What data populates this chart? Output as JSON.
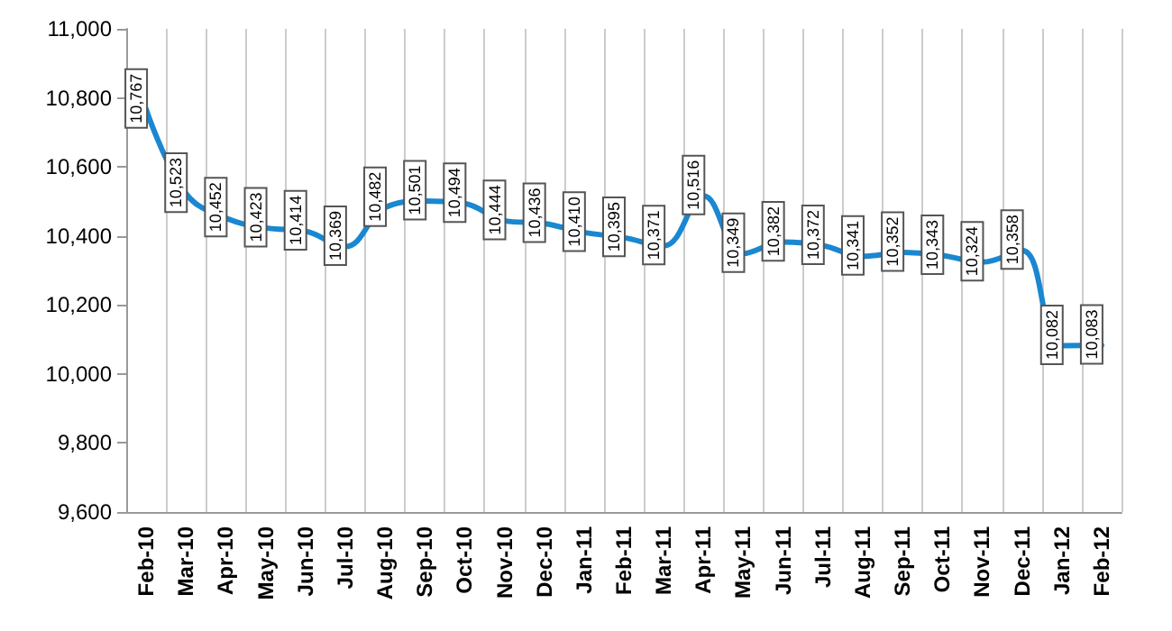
{
  "chart_data": {
    "type": "line",
    "categories": [
      "Feb-10",
      "Mar-10",
      "Apr-10",
      "May-10",
      "Jun-10",
      "Jul-10",
      "Aug-10",
      "Sep-10",
      "Oct-10",
      "Nov-10",
      "Dec-10",
      "Jan-11",
      "Feb-11",
      "Mar-11",
      "Apr-11",
      "May-11",
      "Jun-11",
      "Jul-11",
      "Aug-11",
      "Sep-11",
      "Oct-11",
      "Nov-11",
      "Dec-11",
      "Jan-12",
      "Feb-12"
    ],
    "series": [
      {
        "color": "#1a87d1",
        "values": [
          10767,
          10523,
          10452,
          10423,
          10414,
          10369,
          10482,
          10501,
          10494,
          10444,
          10436,
          10410,
          10395,
          10371,
          10516,
          10349,
          10382,
          10372,
          10341,
          10352,
          10343,
          10324,
          10358,
          10082,
          10083
        ],
        "value_labels": [
          "10,767",
          "10,523",
          "10,452",
          "10,423",
          "10,414",
          "10,369",
          "10,482",
          "10,501",
          "10,494",
          "10,444",
          "10,436",
          "10,410",
          "10,395",
          "10,371",
          "10,516",
          "10,349",
          "10,382",
          "10,372",
          "10,341",
          "10,352",
          "10,343",
          "10,324",
          "10,358",
          "10,082",
          "10,083"
        ]
      }
    ],
    "ylim": [
      9600,
      11000
    ],
    "yticks": [
      {
        "value": 9600,
        "label": "9,600"
      },
      {
        "value": 9800,
        "label": "9,800"
      },
      {
        "value": 10000,
        "label": "10,000"
      },
      {
        "value": 10200,
        "label": "10,200"
      },
      {
        "value": 10400,
        "label": "10,400"
      },
      {
        "value": 10600,
        "label": "10,600"
      },
      {
        "value": 10800,
        "label": "10,800"
      },
      {
        "value": 11000,
        "label": "11,000"
      }
    ],
    "grid": "x",
    "marker": "none",
    "line_style": "solid"
  }
}
